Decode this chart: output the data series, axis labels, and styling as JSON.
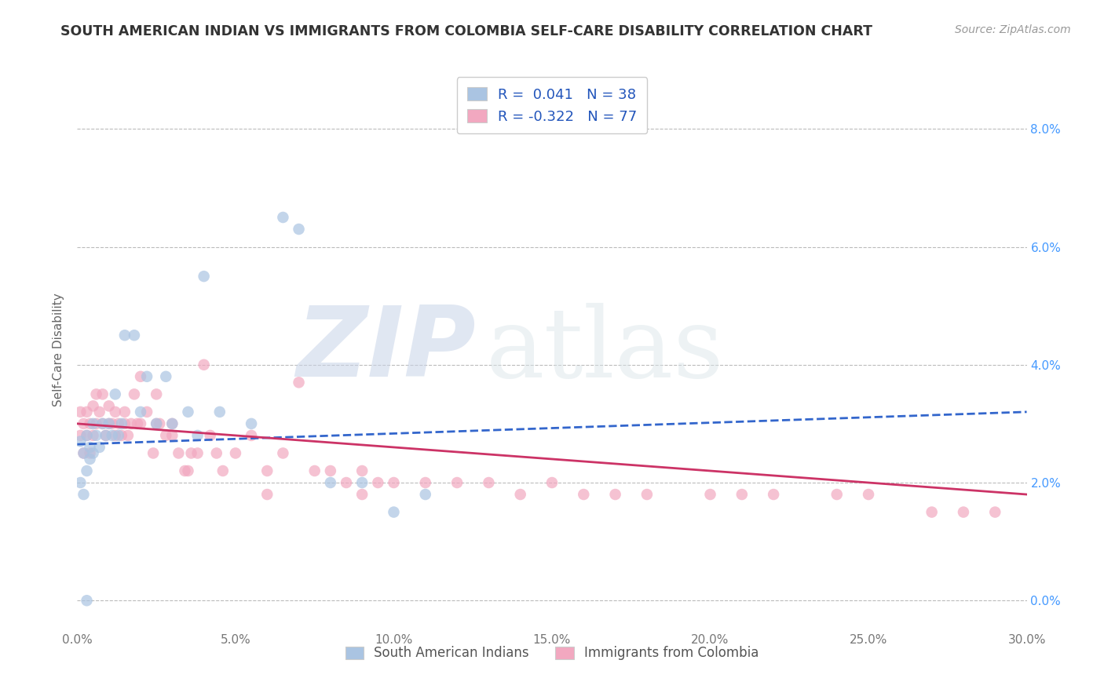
{
  "title": "SOUTH AMERICAN INDIAN VS IMMIGRANTS FROM COLOMBIA SELF-CARE DISABILITY CORRELATION CHART",
  "source": "Source: ZipAtlas.com",
  "ylabel": "Self-Care Disability",
  "xlim": [
    0.0,
    0.3
  ],
  "ylim": [
    -0.005,
    0.09
  ],
  "yticks": [
    0.0,
    0.02,
    0.04,
    0.06,
    0.08
  ],
  "xticks": [
    0.0,
    0.05,
    0.1,
    0.15,
    0.2,
    0.25,
    0.3
  ],
  "blue_R": 0.041,
  "blue_N": 38,
  "pink_R": -0.322,
  "pink_N": 77,
  "blue_color": "#aac4e2",
  "pink_color": "#f2a8c0",
  "blue_line_color": "#3366cc",
  "pink_line_color": "#cc3366",
  "watermark_zip": "ZIP",
  "watermark_atlas": "atlas",
  "legend_label_blue": "South American Indians",
  "legend_label_pink": "Immigrants from Colombia",
  "blue_scatter_x": [
    0.001,
    0.001,
    0.002,
    0.002,
    0.003,
    0.003,
    0.004,
    0.004,
    0.005,
    0.005,
    0.006,
    0.007,
    0.008,
    0.009,
    0.01,
    0.011,
    0.012,
    0.013,
    0.014,
    0.015,
    0.018,
    0.02,
    0.022,
    0.025,
    0.028,
    0.03,
    0.035,
    0.038,
    0.04,
    0.045,
    0.055,
    0.065,
    0.07,
    0.08,
    0.09,
    0.1,
    0.11,
    0.003
  ],
  "blue_scatter_y": [
    0.027,
    0.02,
    0.025,
    0.018,
    0.028,
    0.022,
    0.026,
    0.024,
    0.03,
    0.025,
    0.028,
    0.026,
    0.03,
    0.028,
    0.03,
    0.028,
    0.035,
    0.028,
    0.03,
    0.045,
    0.045,
    0.032,
    0.038,
    0.03,
    0.038,
    0.03,
    0.032,
    0.028,
    0.055,
    0.032,
    0.03,
    0.065,
    0.063,
    0.02,
    0.02,
    0.015,
    0.018,
    0.0
  ],
  "pink_scatter_x": [
    0.001,
    0.001,
    0.002,
    0.002,
    0.003,
    0.003,
    0.004,
    0.004,
    0.005,
    0.005,
    0.006,
    0.006,
    0.007,
    0.008,
    0.008,
    0.009,
    0.01,
    0.01,
    0.011,
    0.012,
    0.012,
    0.013,
    0.014,
    0.015,
    0.015,
    0.016,
    0.017,
    0.018,
    0.019,
    0.02,
    0.02,
    0.022,
    0.024,
    0.025,
    0.026,
    0.028,
    0.03,
    0.032,
    0.034,
    0.036,
    0.038,
    0.04,
    0.042,
    0.044,
    0.046,
    0.05,
    0.055,
    0.06,
    0.065,
    0.07,
    0.075,
    0.08,
    0.085,
    0.09,
    0.095,
    0.1,
    0.11,
    0.12,
    0.13,
    0.14,
    0.15,
    0.16,
    0.17,
    0.18,
    0.2,
    0.21,
    0.22,
    0.24,
    0.25,
    0.27,
    0.28,
    0.29,
    0.025,
    0.03,
    0.035,
    0.06,
    0.09
  ],
  "pink_scatter_y": [
    0.028,
    0.032,
    0.03,
    0.025,
    0.032,
    0.028,
    0.03,
    0.025,
    0.033,
    0.028,
    0.03,
    0.035,
    0.032,
    0.03,
    0.035,
    0.028,
    0.033,
    0.03,
    0.03,
    0.032,
    0.028,
    0.03,
    0.028,
    0.032,
    0.03,
    0.028,
    0.03,
    0.035,
    0.03,
    0.038,
    0.03,
    0.032,
    0.025,
    0.035,
    0.03,
    0.028,
    0.03,
    0.025,
    0.022,
    0.025,
    0.025,
    0.04,
    0.028,
    0.025,
    0.022,
    0.025,
    0.028,
    0.022,
    0.025,
    0.037,
    0.022,
    0.022,
    0.02,
    0.022,
    0.02,
    0.02,
    0.02,
    0.02,
    0.02,
    0.018,
    0.02,
    0.018,
    0.018,
    0.018,
    0.018,
    0.018,
    0.018,
    0.018,
    0.018,
    0.015,
    0.015,
    0.015,
    0.03,
    0.028,
    0.022,
    0.018,
    0.018
  ],
  "blue_line_x0": 0.0,
  "blue_line_y0": 0.0265,
  "blue_line_x1": 0.3,
  "blue_line_y1": 0.032,
  "pink_line_x0": 0.0,
  "pink_line_y0": 0.03,
  "pink_line_x1": 0.3,
  "pink_line_y1": 0.018
}
